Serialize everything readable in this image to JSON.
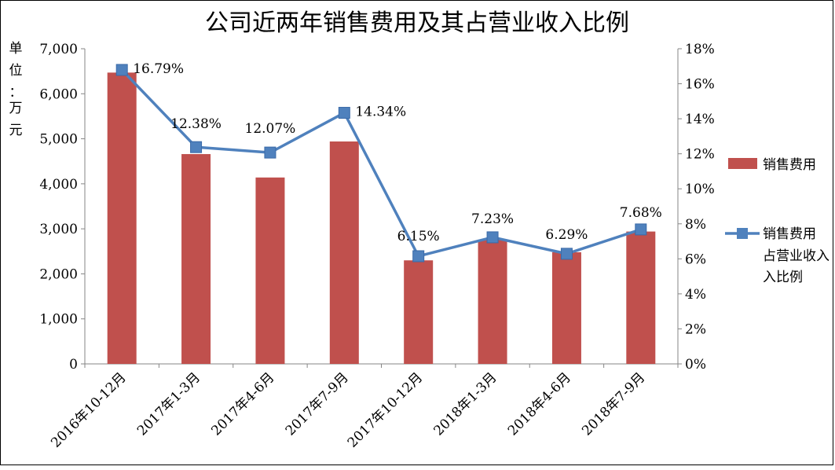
{
  "chart_data": {
    "type": "bar",
    "title": "公司近两年销售费用及其占营业收入比例",
    "ylabel_left": "单位：万元",
    "ylabel_left_chars": [
      "单",
      "位",
      "：",
      "万",
      "元"
    ],
    "categories": [
      "2016年10-12月",
      "2017年1-3月",
      "2017年4-6月",
      "2017年7-9月",
      "2017年10-12月",
      "2018年1-3月",
      "2018年4-6月",
      "2018年7-9月"
    ],
    "series": [
      {
        "name": "销售费用",
        "type": "bar",
        "axis": "left",
        "color": "#C0504D",
        "values": [
          6470,
          4660,
          4140,
          4940,
          2300,
          2760,
          2480,
          2940
        ]
      },
      {
        "name": "销售费用占营业收入比例",
        "name_lines": [
          "销售费用",
          "占营业收入",
          "入比例"
        ],
        "type": "line",
        "axis": "right",
        "color": "#4F81BD",
        "values": [
          16.79,
          12.38,
          12.07,
          14.34,
          6.15,
          7.23,
          6.29,
          7.68
        ],
        "labels": [
          "16.79%",
          "12.38%",
          "12.07%",
          "14.34%",
          "6.15%",
          "7.23%",
          "6.29%",
          "7.68%"
        ]
      }
    ],
    "y_left": {
      "min": 0,
      "max": 7000,
      "step": 1000,
      "tick_labels": [
        "0",
        "1,000",
        "2,000",
        "3,000",
        "4,000",
        "5,000",
        "6,000",
        "7,000"
      ]
    },
    "y_right": {
      "min": 0,
      "max": 18,
      "step": 2,
      "tick_labels": [
        "0%",
        "2%",
        "4%",
        "6%",
        "8%",
        "10%",
        "12%",
        "14%",
        "16%",
        "18%"
      ]
    },
    "grid": false,
    "legend_position": "right"
  }
}
